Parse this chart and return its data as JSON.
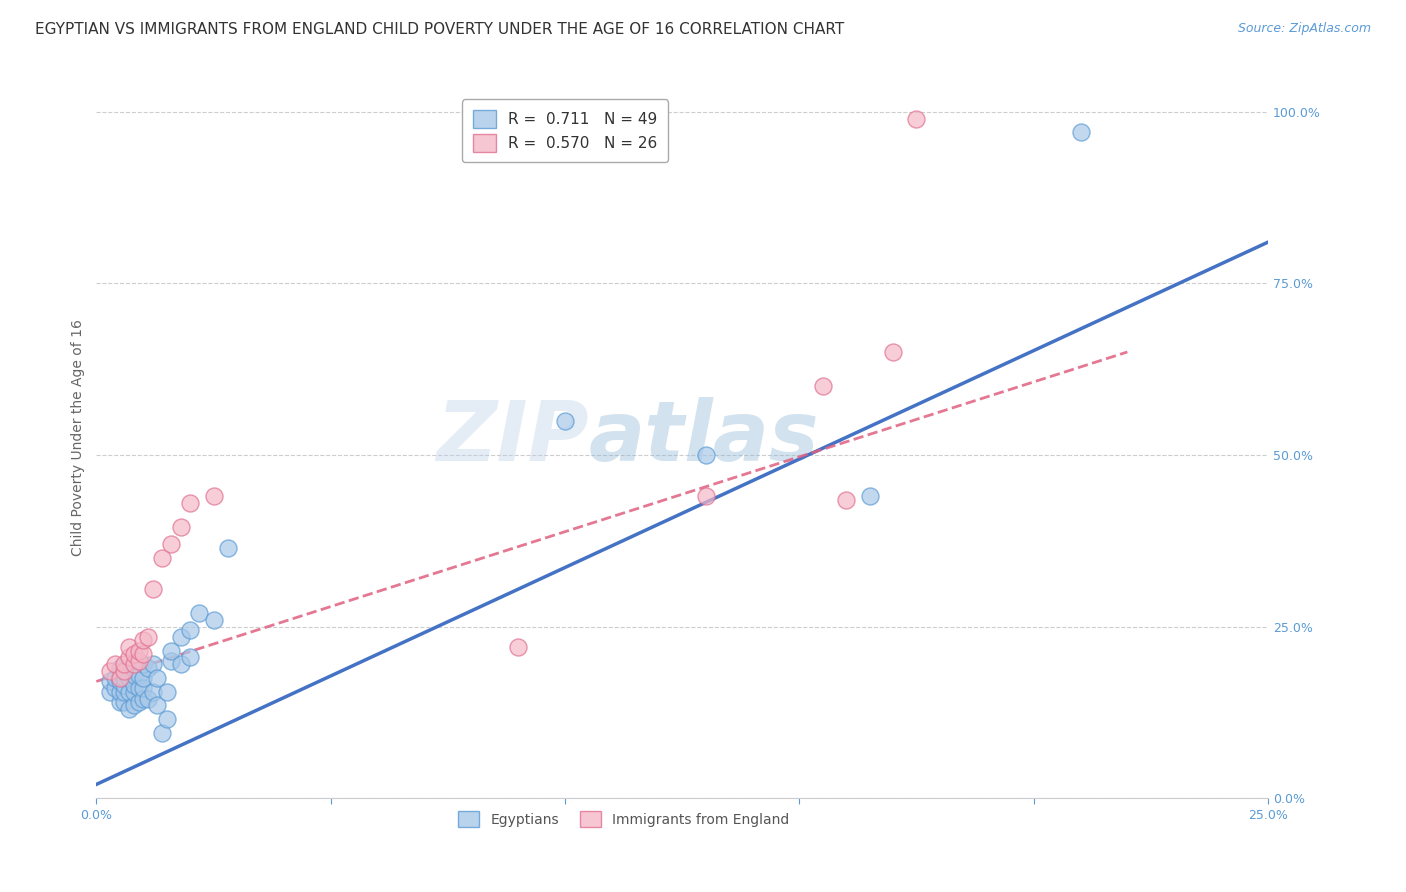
{
  "title": "EGYPTIAN VS IMMIGRANTS FROM ENGLAND CHILD POVERTY UNDER THE AGE OF 16 CORRELATION CHART",
  "source": "Source: ZipAtlas.com",
  "ylabel": "Child Poverty Under the Age of 16",
  "xlim": [
    0.0,
    0.25
  ],
  "ylim": [
    0.0,
    1.05
  ],
  "yticks": [
    0.0,
    0.25,
    0.5,
    0.75,
    1.0
  ],
  "ytick_labels": [
    "0.0%",
    "25.0%",
    "50.0%",
    "75.0%",
    "100.0%"
  ],
  "xticks": [
    0.0,
    0.05,
    0.1,
    0.15,
    0.2,
    0.25
  ],
  "xtick_labels": [
    "0.0%",
    "",
    "",
    "",
    "",
    "25.0%"
  ],
  "legend_blue_r": "0.711",
  "legend_blue_n": "49",
  "legend_pink_r": "0.570",
  "legend_pink_n": "26",
  "blue_color": "#a8c8e8",
  "blue_edge_color": "#5b9bd5",
  "pink_color": "#f4b8c8",
  "pink_edge_color": "#e07090",
  "line_blue_color": "#4472c4",
  "line_pink_color": "#e06080",
  "axis_color": "#5b9bd5",
  "grid_color": "#c8c8c8",
  "watermark_color": "#c8ddf0",
  "blue_scatter_x": [
    0.003,
    0.003,
    0.004,
    0.004,
    0.005,
    0.005,
    0.005,
    0.005,
    0.005,
    0.006,
    0.006,
    0.006,
    0.006,
    0.007,
    0.007,
    0.007,
    0.008,
    0.008,
    0.008,
    0.008,
    0.009,
    0.009,
    0.009,
    0.01,
    0.01,
    0.01,
    0.01,
    0.011,
    0.011,
    0.012,
    0.012,
    0.013,
    0.013,
    0.014,
    0.015,
    0.015,
    0.016,
    0.016,
    0.018,
    0.018,
    0.02,
    0.02,
    0.022,
    0.025,
    0.028,
    0.1,
    0.13,
    0.165,
    0.21
  ],
  "blue_scatter_y": [
    0.155,
    0.17,
    0.16,
    0.175,
    0.14,
    0.155,
    0.17,
    0.185,
    0.19,
    0.14,
    0.155,
    0.165,
    0.175,
    0.13,
    0.155,
    0.175,
    0.135,
    0.155,
    0.165,
    0.18,
    0.14,
    0.16,
    0.18,
    0.145,
    0.16,
    0.175,
    0.195,
    0.145,
    0.19,
    0.155,
    0.195,
    0.135,
    0.175,
    0.095,
    0.115,
    0.155,
    0.2,
    0.215,
    0.195,
    0.235,
    0.205,
    0.245,
    0.27,
    0.26,
    0.365,
    0.55,
    0.5,
    0.44,
    0.97
  ],
  "pink_scatter_x": [
    0.003,
    0.004,
    0.005,
    0.006,
    0.006,
    0.007,
    0.007,
    0.008,
    0.008,
    0.009,
    0.009,
    0.01,
    0.01,
    0.011,
    0.012,
    0.014,
    0.016,
    0.018,
    0.02,
    0.025,
    0.09,
    0.13,
    0.155,
    0.16,
    0.17,
    0.175
  ],
  "pink_scatter_y": [
    0.185,
    0.195,
    0.175,
    0.185,
    0.195,
    0.205,
    0.22,
    0.195,
    0.21,
    0.2,
    0.215,
    0.21,
    0.23,
    0.235,
    0.305,
    0.35,
    0.37,
    0.395,
    0.43,
    0.44,
    0.22,
    0.44,
    0.6,
    0.435,
    0.65,
    0.99
  ],
  "blue_line_x": [
    0.0,
    0.25
  ],
  "blue_line_y": [
    0.02,
    0.81
  ],
  "pink_line_x": [
    0.0,
    0.22
  ],
  "pink_line_y": [
    0.17,
    0.65
  ],
  "background_color": "#ffffff",
  "title_fontsize": 11,
  "axis_label_fontsize": 10,
  "tick_fontsize": 9,
  "legend_fontsize": 11
}
